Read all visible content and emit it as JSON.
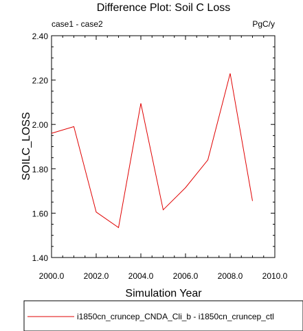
{
  "chart_data": {
    "type": "line",
    "title": "Difference Plot: Soil C Loss",
    "left_subtitle": "case1 - case2",
    "right_subtitle": "PgC/y",
    "xlabel": "Simulation Year",
    "ylabel": "SOILC_LOSS",
    "xlim": [
      2000,
      2010
    ],
    "ylim": [
      1.4,
      2.4
    ],
    "x_tick_values": [
      2000,
      2002,
      2004,
      2006,
      2008,
      2010
    ],
    "x_tick_labels": [
      "2000.0",
      "2002.0",
      "2004.0",
      "2006.0",
      "2008.0",
      "2010.0"
    ],
    "y_tick_values": [
      1.4,
      1.6,
      1.8,
      2.0,
      2.2,
      2.4
    ],
    "y_tick_labels": [
      "1.40",
      "1.60",
      "1.80",
      "2.00",
      "2.20",
      "2.40"
    ],
    "grid": false,
    "legend_position": "bottom",
    "series": [
      {
        "name": "i1850cn_cruncep_CNDA_Cli_b - i1850cn_cruncep_ctl",
        "color": "#e00000",
        "x": [
          2000,
          2001,
          2002,
          2003,
          2004,
          2005,
          2006,
          2007,
          2008,
          2009
        ],
        "y": [
          1.96,
          1.99,
          1.605,
          1.535,
          2.095,
          1.615,
          1.715,
          1.84,
          2.23,
          1.655
        ]
      }
    ]
  }
}
